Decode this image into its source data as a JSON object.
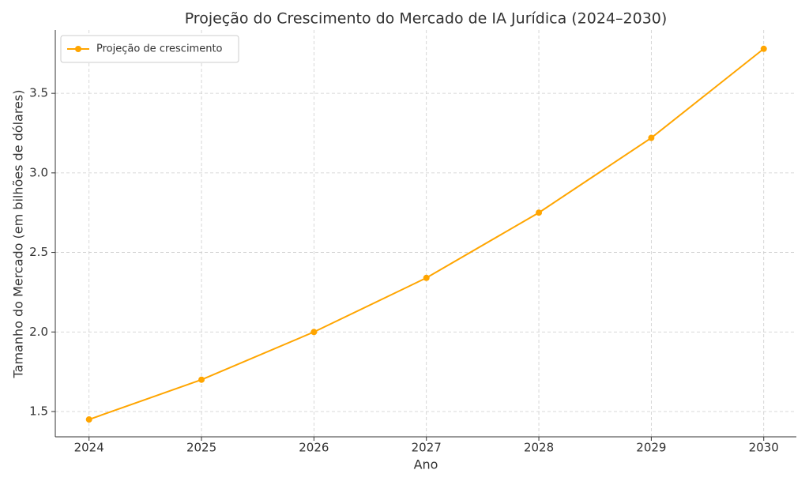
{
  "chart_data": {
    "type": "line",
    "title": "Projeção do Crescimento do Mercado de IA Jurídica (2024–2030)",
    "x_label": "Ano",
    "y_label": "Tamanho do Mercado (em bilhões de dólares)",
    "x": [
      2024,
      2025,
      2026,
      2027,
      2028,
      2029,
      2030
    ],
    "series": [
      {
        "name": "Projeção de crescimento",
        "color": "#ffa500",
        "values": [
          1.45,
          1.7,
          2.0,
          2.34,
          2.75,
          3.22,
          3.78
        ]
      }
    ],
    "xlim": [
      2023.7,
      2030.29
    ],
    "xticks": [
      2024,
      2025,
      2026,
      2027,
      2028,
      2029,
      2030
    ],
    "ylim": [
      1.341,
      3.898
    ],
    "yticks": [
      {
        "value": 1.5,
        "label": "1.5"
      },
      {
        "value": 2.0,
        "label": "2.0"
      },
      {
        "value": 2.5,
        "label": "2.5"
      },
      {
        "value": 3.0,
        "label": "3.0"
      },
      {
        "value": 3.5,
        "label": "3.5"
      }
    ],
    "grid": true,
    "legend": "upper left"
  }
}
